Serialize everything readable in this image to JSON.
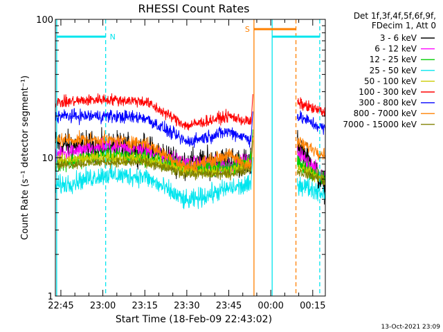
{
  "chart_data": {
    "type": "line",
    "title": "RHESSI Count Rates",
    "xlabel": "Start Time (18-Feb-09 22:43:02)",
    "ylabel": "Count Rate (s⁻¹ detector segment⁻¹)",
    "yscale": "log",
    "ylim": [
      1,
      100
    ],
    "y_ticks": [
      {
        "value": 1,
        "label": "1"
      },
      {
        "value": 10,
        "label": "10"
      },
      {
        "value": 100,
        "label": "100"
      }
    ],
    "xlim": [
      "22:43:02",
      "22:46:00+1:36"
    ],
    "x_ticks": [
      "22:45",
      "23:00",
      "23:15",
      "23:30",
      "23:45",
      "00:00",
      "00:15"
    ],
    "legend_title": [
      "Det 1f,3f,4f,5f,6f,9f,",
      "FDecim 1, Att 0"
    ],
    "legend_position": "right",
    "timestamp": "13-Oct-2021 23:09",
    "gap": [
      "23:54:30",
      "00:09:30"
    ],
    "flags": [
      {
        "label": "N",
        "color": "#00e5ee",
        "start": "22:43:30",
        "end": "23:01:00",
        "level": 75
      },
      {
        "label": "S",
        "color": "#ff8000",
        "start": "23:54:00",
        "end": "00:09:00",
        "level": 85
      },
      {
        "label": "",
        "color": "#00e5ee",
        "start": "00:00:30",
        "end": "00:17:30",
        "level": 75
      }
    ],
    "markers": [
      {
        "time": "22:43:30",
        "color": "#00e5ee",
        "style": "solid"
      },
      {
        "time": "23:01:00",
        "color": "#00e5ee",
        "style": "dashed"
      },
      {
        "time": "23:54:00",
        "color": "#ff8000",
        "style": "solid"
      },
      {
        "time": "00:00:30",
        "color": "#00e5ee",
        "style": "solid"
      },
      {
        "time": "00:09:00",
        "color": "#ff8000",
        "style": "dashed"
      },
      {
        "time": "00:17:30",
        "color": "#00e5ee",
        "style": "dashed"
      }
    ],
    "x_anchor_times": [
      "22:43",
      "23:00",
      "23:15",
      "23:30",
      "23:45",
      "23:53",
      "00:10",
      "00:18"
    ],
    "series": [
      {
        "name": "3 - 6 keV",
        "color": "#000000",
        "noise": 0.09,
        "values": [
          12.5,
          12,
          11.5,
          9,
          9.5,
          9,
          9,
          13,
          6
        ]
      },
      {
        "name": "6 - 12 keV",
        "color": "#ff00ff",
        "noise": 0.05,
        "values": [
          10.5,
          12,
          11.5,
          9,
          8.8,
          9.5,
          8,
          11,
          7
        ]
      },
      {
        "name": "12 - 25 keV",
        "color": "#00cc00",
        "noise": 0.05,
        "values": [
          9,
          10.5,
          10,
          8.5,
          8.3,
          10,
          8.5,
          9,
          7
        ]
      },
      {
        "name": "25 - 50 keV",
        "color": "#00e5ee",
        "noise": 0.06,
        "values": [
          6.2,
          7.5,
          7.3,
          4.8,
          6,
          6.3,
          5.2,
          6.5,
          5.5
        ]
      },
      {
        "name": "50 - 100 keV",
        "color": "#cccc00",
        "noise": 0.04,
        "values": [
          9.5,
          10,
          9.8,
          8,
          8,
          8.8,
          7.5,
          8.5,
          7
        ]
      },
      {
        "name": "100 - 300 keV",
        "color": "#ff0000",
        "noise": 0.035,
        "values": [
          25,
          26.5,
          25.5,
          17,
          20,
          18,
          16,
          25,
          21
        ]
      },
      {
        "name": "300 - 800 keV",
        "color": "#0000ff",
        "noise": 0.04,
        "values": [
          20,
          20,
          19.5,
          13,
          15.5,
          13.5,
          12.5,
          20,
          16
        ]
      },
      {
        "name": "800 - 7000 keV",
        "color": "#ff8000",
        "noise": 0.04,
        "values": [
          13.5,
          13.5,
          12.8,
          8.5,
          10.5,
          8.5,
          7.8,
          13,
          10.5
        ]
      },
      {
        "name": "7000 - 15000 keV",
        "color": "#808000",
        "noise": 0.03,
        "values": [
          8.8,
          9.3,
          9.2,
          7.6,
          7.6,
          8.3,
          7.2,
          8,
          6.8
        ]
      }
    ]
  }
}
